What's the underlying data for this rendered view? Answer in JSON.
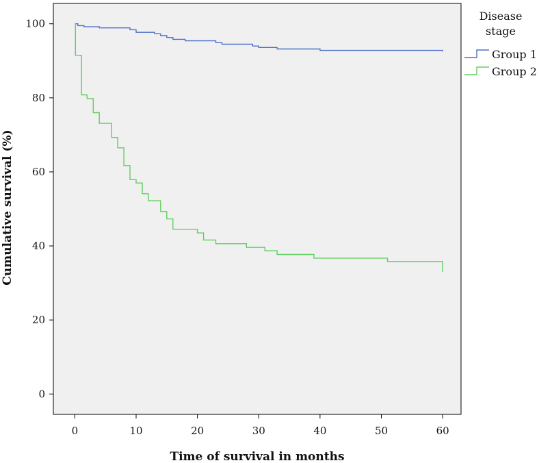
{
  "chart_data": {
    "type": "line",
    "subtype": "step (Kaplan-Meier survival curve)",
    "xlabel": "Time of survival in months",
    "ylabel": "Cumulative survival (%)",
    "xlim": [
      -3.5,
      63
    ],
    "ylim": [
      -5.5,
      105.5
    ],
    "x_ticks": [
      0,
      10,
      20,
      30,
      40,
      50,
      60
    ],
    "y_ticks": [
      0,
      20,
      40,
      60,
      80,
      100
    ],
    "grid": false,
    "background_color": "#f0f0f0",
    "legend": {
      "title_line1": "Disease",
      "title_line2": "stage",
      "placement": "right"
    },
    "series": [
      {
        "name": "Group 1",
        "color": "#4a6fc7",
        "points": [
          [
            0,
            100
          ],
          [
            0.5,
            99.5
          ],
          [
            1.5,
            99.2
          ],
          [
            4,
            98.9
          ],
          [
            9,
            98.4
          ],
          [
            10,
            97.7
          ],
          [
            13,
            97.3
          ],
          [
            14,
            96.8
          ],
          [
            15,
            96.3
          ],
          [
            16,
            95.8
          ],
          [
            18,
            95.4
          ],
          [
            23,
            94.9
          ],
          [
            24,
            94.5
          ],
          [
            29,
            94.0
          ],
          [
            30,
            93.6
          ],
          [
            33,
            93.2
          ],
          [
            40,
            92.8
          ],
          [
            60,
            92.5
          ]
        ]
      },
      {
        "name": "Group 2",
        "color": "#5fcf5f",
        "points": [
          [
            0,
            100
          ],
          [
            0.1,
            91.5
          ],
          [
            1.1,
            80.8
          ],
          [
            2,
            79.8
          ],
          [
            3,
            76.0
          ],
          [
            4,
            73.1
          ],
          [
            6,
            69.3
          ],
          [
            7,
            66.5
          ],
          [
            8,
            61.7
          ],
          [
            9,
            57.9
          ],
          [
            10,
            57.0
          ],
          [
            11,
            54.1
          ],
          [
            12,
            52.2
          ],
          [
            14,
            49.3
          ],
          [
            15,
            47.3
          ],
          [
            16,
            44.5
          ],
          [
            20,
            43.5
          ],
          [
            21,
            41.6
          ],
          [
            23,
            40.6
          ],
          [
            28,
            39.6
          ],
          [
            31,
            38.7
          ],
          [
            33,
            37.7
          ],
          [
            39,
            36.7
          ],
          [
            51,
            35.8
          ],
          [
            60,
            33.0
          ]
        ]
      }
    ]
  }
}
